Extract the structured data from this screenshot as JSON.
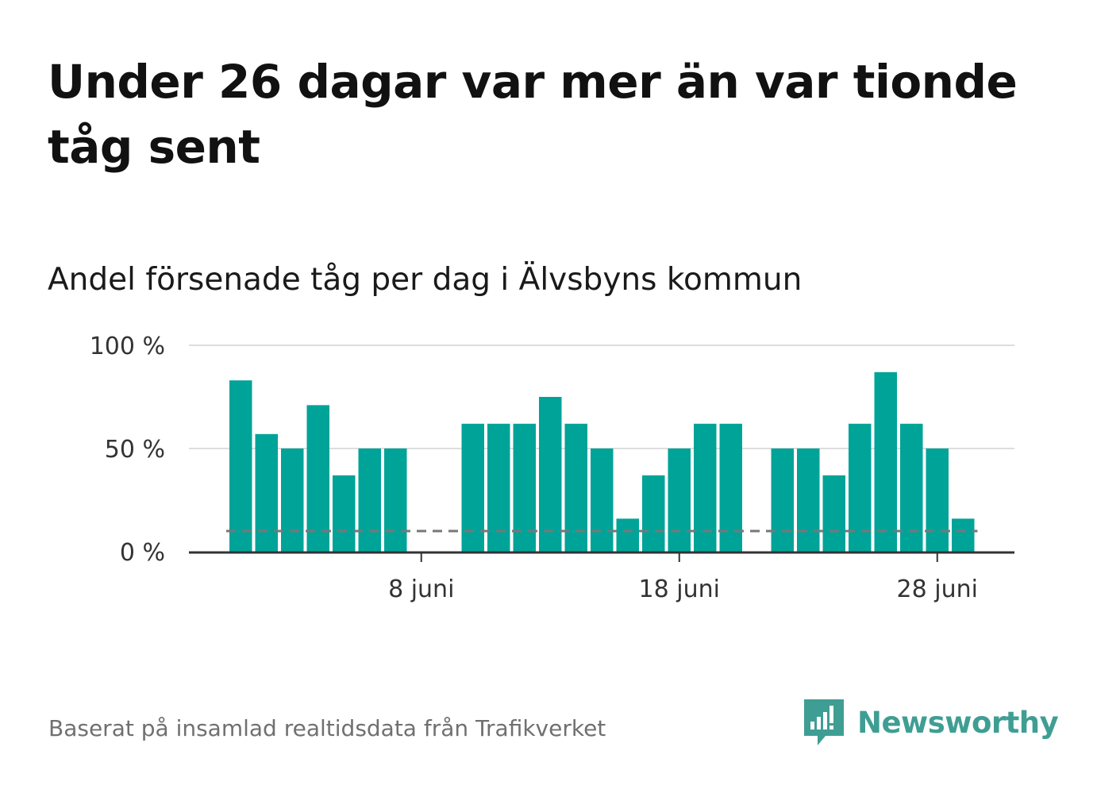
{
  "title": "Under 26 dagar var mer än var tionde tåg sent",
  "subtitle": "Andel försenade tåg per dag i Älvsbyns kommun",
  "footer": "Baserat på insamlad realtidsdata från Trafikverket",
  "brand": {
    "name": "Newsworthy",
    "icon": "newsworthy-bar-chart-icon",
    "color": "#3f9e93"
  },
  "colors": {
    "bar": "#00a398",
    "grid": "#dddddd",
    "axis": "#333333",
    "reference_line": "#777777"
  },
  "chart_data": {
    "type": "bar",
    "x_unit": "day of June",
    "x": [
      1,
      2,
      3,
      4,
      5,
      6,
      7,
      8,
      9,
      10,
      11,
      12,
      13,
      14,
      15,
      16,
      17,
      18,
      19,
      20,
      21,
      22,
      23,
      24,
      25,
      26,
      27,
      28,
      29,
      30
    ],
    "values": [
      83,
      57,
      50,
      71,
      37,
      50,
      50,
      null,
      null,
      62,
      62,
      62,
      75,
      62,
      50,
      16,
      37,
      50,
      62,
      62,
      null,
      50,
      50,
      37,
      62,
      87,
      62,
      50,
      16,
      null
    ],
    "ylim": [
      0,
      100
    ],
    "y_ticks": [
      0,
      50,
      100
    ],
    "y_tick_labels": [
      "0 %",
      "50 %",
      "100 %"
    ],
    "x_ticks": [
      8,
      18,
      28
    ],
    "x_tick_labels": [
      "8 juni",
      "18 juni",
      "28 juni"
    ],
    "reference_line": 10,
    "grid": true
  }
}
